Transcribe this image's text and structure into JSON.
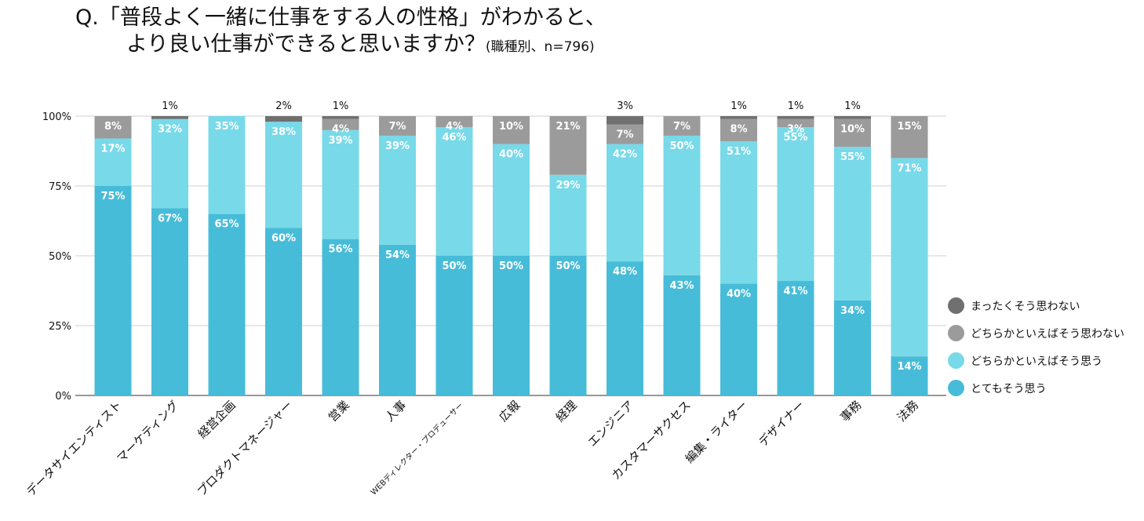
{
  "title": {
    "line1": "Q.「普段よく一緒に仕事をする人の性格」がわかると、",
    "line2": "より良い仕事ができると思いますか？",
    "note": "(職種別、n=796)"
  },
  "chart_data": {
    "type": "bar",
    "stacked": true,
    "title": "Q.「普段よく一緒に仕事をする人の性格」がわかると、より良い仕事ができると思いますか？(職種別、n=796)",
    "xlabel": "",
    "ylabel": "",
    "ylim": [
      0,
      100
    ],
    "yticks": [
      "0%",
      "25%",
      "50%",
      "75%",
      "100%"
    ],
    "grid": true,
    "legend_position": "right",
    "categories": [
      "データサイエンティスト",
      "マーケティング",
      "経営企画",
      "プロダクトマネージャー",
      "営業",
      "人事",
      "WEBディレクター・プロデューサー",
      "広報",
      "経理",
      "エンジニア",
      "カスタマーサクセス",
      "編集・ライター",
      "デザイナー",
      "事務",
      "法務"
    ],
    "series": [
      {
        "name": "とてもそう思う",
        "color": "#47bcd8",
        "values": [
          75,
          67,
          65,
          60,
          56,
          54,
          50,
          50,
          50,
          48,
          43,
          40,
          41,
          34,
          14
        ],
        "labels": [
          "75%",
          "67%",
          "65%",
          "60%",
          "56%",
          "54%",
          "50%",
          "50%",
          "50%",
          "48%",
          "43%",
          "40%",
          "41%",
          "34%",
          "14%"
        ]
      },
      {
        "name": "どちらかといえばそう思う",
        "color": "#78d9e8",
        "values": [
          17,
          32,
          35,
          38,
          39,
          39,
          46,
          40,
          29,
          42,
          50,
          51,
          55,
          55,
          71
        ],
        "labels": [
          "17%",
          "32%",
          "35%",
          "38%",
          "39%",
          "39%",
          "46%",
          "40%",
          "29%",
          "42%",
          "50%",
          "51%",
          "55%",
          "55%",
          "71%"
        ]
      },
      {
        "name": "どちらかといえばそう思わない",
        "color": "#9b9b9b",
        "values": [
          8,
          0,
          0,
          0,
          4,
          7,
          4,
          10,
          21,
          7,
          7,
          8,
          3,
          10,
          15
        ],
        "labels": [
          "8%",
          "",
          "",
          "",
          "4%",
          "7%",
          "4%",
          "10%",
          "21%",
          "7%",
          "7%",
          "8%",
          "3%",
          "10%",
          "15%"
        ]
      },
      {
        "name": "まったくそう思わない",
        "color": "#707070",
        "values": [
          0,
          1,
          0,
          2,
          1,
          0,
          0,
          0,
          0,
          3,
          0,
          1,
          1,
          1,
          0
        ],
        "labels": [
          "",
          "1%",
          "",
          "2%",
          "1%",
          "",
          "",
          "",
          "",
          "3%",
          "",
          "1%",
          "1%",
          "1%",
          ""
        ]
      }
    ],
    "outside_labels": [
      "",
      "1%",
      "",
      "2%",
      "1%",
      "",
      "",
      "",
      "",
      "3%",
      "",
      "1%",
      "1%",
      "1%",
      ""
    ]
  }
}
